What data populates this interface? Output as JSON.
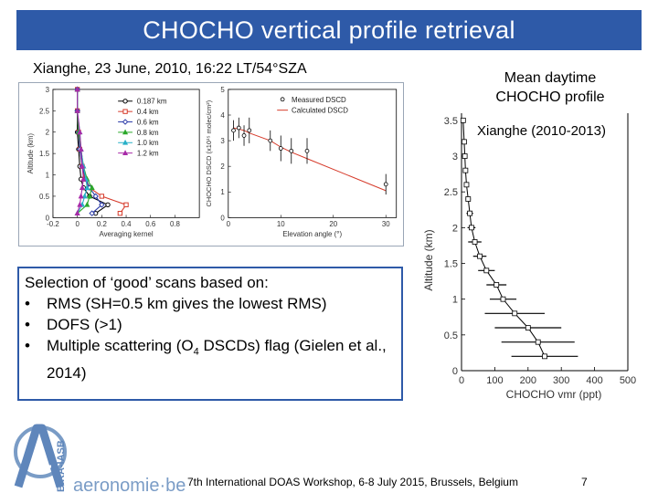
{
  "slide": {
    "title": "CHOCHO vertical profile retrieval",
    "subtitle": "Xianghe, 23 June, 2010, 16:22 LT/54°SZA",
    "right_title": "Mean daytime CHOCHO profile",
    "right_site": "Xianghe (2010-2013)",
    "selection_heading": "Selection of ‘good’ scans based on:",
    "bullet_char": "•",
    "bullets": [
      {
        "text": "RMS (SH=0.5 km gives the lowest RMS)"
      },
      {
        "text": "DOFS (>1)"
      },
      {
        "text_pre": "Multiple scattering (O",
        "sub": "4",
        "text_post": " DSCDs) flag (Gielen et al., 2014)"
      }
    ],
    "logo_text": "aeronomie·be",
    "logo_vertical_text": "BIRA-IASB",
    "footer": "7th International DOAS Workshop, 6-8 July 2015, Brussels, Belgium",
    "page_number": "7"
  },
  "colors": {
    "title_bar": "#2e5aa8",
    "box_border": "#2e5aa8",
    "logo_blue": "#7a9cc6"
  },
  "chart_data": [
    {
      "type": "line",
      "xlabel": "Averaging kernel",
      "ylabel": "Altitude (km)",
      "xlim": [
        -0.2,
        1.0
      ],
      "ylim": [
        0,
        3
      ],
      "x_ticks": [
        "-0.2",
        "0",
        "0.2",
        "0.4",
        "0.6",
        "0.8"
      ],
      "y_ticks": [
        "0",
        "0.5",
        "1",
        "1.5",
        "2",
        "2.5",
        "3"
      ],
      "legend_position": "top-right",
      "altitudes": [
        0.1,
        0.3,
        0.5,
        0.7,
        0.9,
        1.2,
        1.6,
        2.0,
        2.5,
        3.0
      ],
      "series": [
        {
          "name": "0.187 km",
          "color": "#000000",
          "marker": "circle",
          "values": [
            0.15,
            0.25,
            0.1,
            0.05,
            0.03,
            0.02,
            0.01,
            0.0,
            0.0,
            0.0
          ]
        },
        {
          "name": "0.4 km",
          "color": "#d63a2a",
          "marker": "square",
          "values": [
            0.35,
            0.4,
            0.2,
            0.1,
            0.06,
            0.04,
            0.02,
            0.01,
            0.0,
            0.0
          ]
        },
        {
          "name": "0.6 km",
          "color": "#2a3aa8",
          "marker": "diamond",
          "values": [
            0.12,
            0.2,
            0.15,
            0.1,
            0.07,
            0.04,
            0.02,
            0.01,
            0.0,
            0.0
          ]
        },
        {
          "name": "0.8 km",
          "color": "#2aa82a",
          "marker": "triangle",
          "values": [
            0.0,
            0.08,
            0.1,
            0.12,
            0.08,
            0.05,
            0.03,
            0.01,
            0.0,
            0.0
          ]
        },
        {
          "name": "1.0 km",
          "color": "#28b0c8",
          "marker": "triangle",
          "values": [
            0.0,
            0.04,
            0.06,
            0.08,
            0.07,
            0.05,
            0.03,
            0.02,
            0.0,
            0.0
          ]
        },
        {
          "name": "1.2 km",
          "color": "#a82aa8",
          "marker": "triangle",
          "values": [
            0.0,
            0.02,
            0.03,
            0.04,
            0.05,
            0.04,
            0.03,
            0.02,
            0.0,
            0.0
          ]
        }
      ]
    },
    {
      "type": "scatter",
      "xlabel": "Elevation angle (°)",
      "ylabel": "CHOCHO DSCD (x10¹⁵ molec/cm²)",
      "xlim": [
        0,
        32
      ],
      "ylim": [
        0,
        5
      ],
      "x_ticks": [
        "0",
        "10",
        "20",
        "30"
      ],
      "y_ticks": [
        "0",
        "1",
        "2",
        "3",
        "4",
        "5"
      ],
      "legend_position": "top-right",
      "series": [
        {
          "name": "Measured DSCD",
          "color": "#000000",
          "x": [
            1,
            2,
            3,
            4,
            8,
            10,
            12,
            15,
            30
          ],
          "y": [
            3.4,
            3.5,
            3.2,
            3.4,
            3.0,
            2.7,
            2.6,
            2.6,
            1.3
          ],
          "err": [
            0.4,
            0.4,
            0.4,
            0.5,
            0.4,
            0.5,
            0.5,
            0.5,
            0.4
          ]
        },
        {
          "name": "Calculated DSCD",
          "color": "#d63a2a",
          "x": [
            1,
            2,
            3,
            4,
            8,
            10,
            12,
            15,
            30
          ],
          "y": [
            3.5,
            3.45,
            3.4,
            3.3,
            3.0,
            2.75,
            2.55,
            2.3,
            1.05
          ]
        }
      ]
    },
    {
      "type": "line",
      "xlabel": "CHOCHO vmr (ppt)",
      "ylabel": "Altitude (km)",
      "xlim": [
        0,
        500
      ],
      "ylim": [
        0,
        3.6
      ],
      "x_ticks": [
        "0",
        "100",
        "200",
        "300",
        "400",
        "500"
      ],
      "y_ticks": [
        "0",
        "0.5",
        "1",
        "1.5",
        "2",
        "2.5",
        "3",
        "3.5"
      ],
      "series": [
        {
          "name": "",
          "color": "#000000",
          "altitude": [
            3.5,
            3.2,
            3.0,
            2.8,
            2.6,
            2.4,
            2.2,
            2.0,
            1.8,
            1.6,
            1.4,
            1.2,
            1.0,
            0.8,
            0.6,
            0.4,
            0.2
          ],
          "vmr": [
            5,
            8,
            10,
            12,
            15,
            20,
            25,
            30,
            40,
            55,
            75,
            105,
            125,
            160,
            200,
            230,
            250
          ],
          "err": [
            0,
            0,
            0,
            0,
            5,
            8,
            10,
            12,
            20,
            20,
            25,
            30,
            40,
            90,
            100,
            110,
            100
          ]
        }
      ]
    }
  ]
}
